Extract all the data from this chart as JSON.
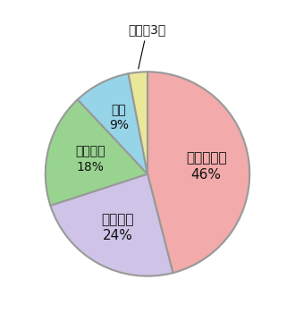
{
  "values": [
    46,
    24,
    18,
    9,
    3
  ],
  "colors": [
    "#f2aaaa",
    "#cfc4e8",
    "#98d490",
    "#96d4e8",
    "#e8e898"
  ],
  "edge_color": "#999999",
  "edge_width": 1.5,
  "startangle": 90,
  "background_color": "#ffffff",
  "inner_labels": [
    {
      "text": "エネルギー\n46%",
      "idx": 0,
      "r": 0.58,
      "fontsize": 11
    },
    {
      "text": "フロン等\n24%",
      "idx": 1,
      "r": 0.6,
      "fontsize": 11
    },
    {
      "text": "森林減少\n18%",
      "idx": 2,
      "r": 0.58,
      "fontsize": 10
    },
    {
      "text": "農業\n9%",
      "idx": 3,
      "r": 0.62,
      "fontsize": 10
    }
  ],
  "outer_label": "その他3％",
  "outer_label_idx": 4,
  "outer_label_fontsize": 10
}
